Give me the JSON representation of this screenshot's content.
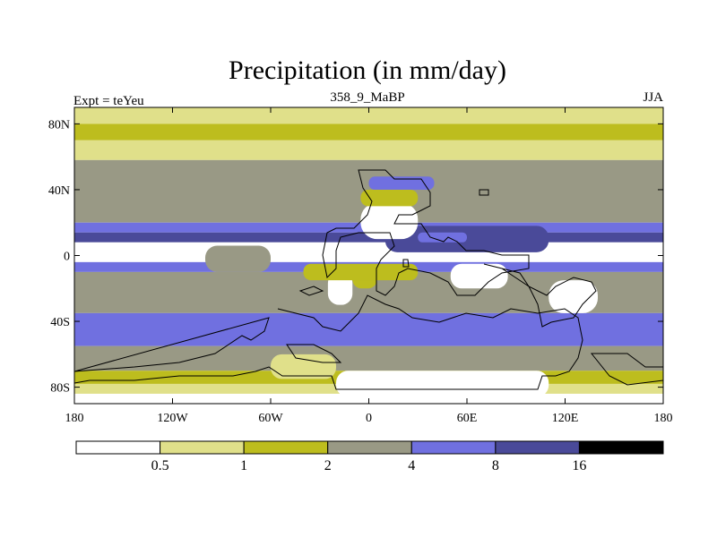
{
  "chart_data": {
    "type": "heatmap",
    "title": "Precipitation (in mm/day)",
    "subtitle_left": "Expt = teYeu",
    "subtitle_center": "358_9_MaBP",
    "subtitle_right": "JJA",
    "x_ticks": [
      "180",
      "120W",
      "60W",
      "0",
      "60E",
      "120E",
      "180"
    ],
    "x_tick_values": [
      -180,
      -120,
      -60,
      0,
      60,
      120,
      180
    ],
    "y_ticks": [
      "80N",
      "40N",
      "0",
      "40S",
      "80S"
    ],
    "y_tick_values": [
      80,
      40,
      0,
      -40,
      -80
    ],
    "xlim": [
      -180,
      180
    ],
    "ylim": [
      -90,
      90
    ],
    "colorbar": {
      "levels": [
        "0.5",
        "1",
        "2",
        "4",
        "8",
        "16"
      ],
      "colors": [
        "#ffffff",
        "#e0e08a",
        "#bdbd1e",
        "#999985",
        "#7070e0",
        "#4a4a99",
        "#000000"
      ]
    },
    "bands": [
      {
        "lat": [
          80,
          90
        ],
        "level": 1
      },
      {
        "lat": [
          70,
          80
        ],
        "level": 2
      },
      {
        "lat": [
          58,
          70
        ],
        "level": 1
      },
      {
        "lat": [
          20,
          58
        ],
        "level": 3
      },
      {
        "lat": [
          14,
          20
        ],
        "level": 4
      },
      {
        "lat": [
          8,
          14
        ],
        "level": 5
      },
      {
        "lat": [
          -4,
          8
        ],
        "level": 0
      },
      {
        "lat": [
          -10,
          -4
        ],
        "level": 4
      },
      {
        "lat": [
          -35,
          -10
        ],
        "level": 3
      },
      {
        "lat": [
          -55,
          -35
        ],
        "level": 4
      },
      {
        "lat": [
          -70,
          -55
        ],
        "level": 3
      },
      {
        "lat": [
          -78,
          -70
        ],
        "level": 2
      },
      {
        "lat": [
          -84,
          -78
        ],
        "level": 1
      },
      {
        "lat": [
          -90,
          -84
        ],
        "level": 0
      }
    ],
    "patches": [
      {
        "lon": [
          -175,
          -115
        ],
        "lat": [
          -2,
          6
        ],
        "level": 0
      },
      {
        "lon": [
          130,
          180
        ],
        "lat": [
          -2,
          4
        ],
        "level": 0
      },
      {
        "lon": [
          -100,
          -60
        ],
        "lat": [
          -10,
          6
        ],
        "level": 3
      },
      {
        "lon": [
          10,
          110
        ],
        "lat": [
          2,
          18
        ],
        "level": 5
      },
      {
        "lon": [
          30,
          60
        ],
        "lat": [
          8,
          14
        ],
        "level": 4
      },
      {
        "lon": [
          -5,
          30
        ],
        "lat": [
          10,
          32
        ],
        "level": 0
      },
      {
        "lon": [
          -5,
          30
        ],
        "lat": [
          30,
          40
        ],
        "level": 2
      },
      {
        "lon": [
          0,
          40
        ],
        "lat": [
          40,
          48
        ],
        "level": 4
      },
      {
        "lon": [
          -25,
          -10
        ],
        "lat": [
          -30,
          -10
        ],
        "level": 0
      },
      {
        "lon": [
          -10,
          5
        ],
        "lat": [
          -20,
          -8
        ],
        "level": 2
      },
      {
        "lon": [
          50,
          85
        ],
        "lat": [
          -20,
          -5
        ],
        "level": 0
      },
      {
        "lon": [
          110,
          140
        ],
        "lat": [
          -35,
          -15
        ],
        "level": 0
      },
      {
        "lon": [
          -20,
          110
        ],
        "lat": [
          -86,
          -70
        ],
        "level": 0
      },
      {
        "lon": [
          -60,
          -20
        ],
        "lat": [
          -75,
          -60
        ],
        "level": 1
      },
      {
        "lon": [
          -40,
          30
        ],
        "lat": [
          -15,
          -5
        ],
        "level": 2
      }
    ]
  }
}
